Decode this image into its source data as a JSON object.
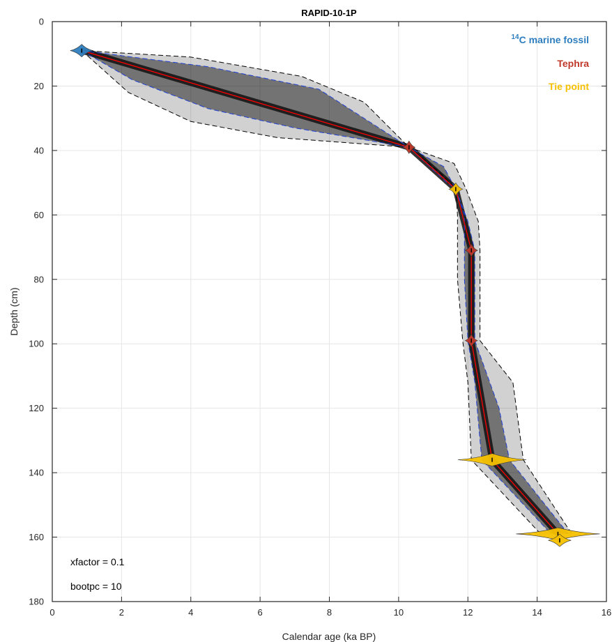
{
  "chart_data": {
    "type": "line",
    "title": "RAPID-10-1P",
    "xlabel": "Calendar age (ka BP)",
    "ylabel": "Depth (cm)",
    "xlim": [
      0,
      16
    ],
    "ylim": [
      0,
      180
    ],
    "y_reversed": true,
    "grid": true,
    "x_ticks": [
      0,
      2,
      4,
      6,
      8,
      10,
      12,
      14,
      16
    ],
    "y_ticks": [
      0,
      20,
      40,
      60,
      80,
      100,
      120,
      140,
      160,
      180
    ],
    "legend": {
      "placement": "top-right",
      "entries": [
        {
          "prefix": "14",
          "label": "C marine fossil",
          "color": "#2e7ebf"
        },
        {
          "label": "Tephra",
          "color": "#c0392b"
        },
        {
          "label": "Tie point",
          "color": "#f6c000"
        }
      ]
    },
    "annotations": [
      "xfactor = 0.1",
      "bootpc = 10"
    ],
    "series": [
      {
        "role": "median",
        "color": "#ff0000",
        "points": [
          [
            0.85,
            9
          ],
          [
            10.3,
            39
          ],
          [
            11.65,
            52
          ],
          [
            12.1,
            71
          ],
          [
            12.1,
            99
          ],
          [
            12.7,
            136
          ],
          [
            14.6,
            159
          ]
        ]
      },
      {
        "role": "inner-range",
        "color": "#1f3fd6",
        "upper": [
          [
            0.85,
            9
          ],
          [
            4.5,
            14
          ],
          [
            7.7,
            21
          ],
          [
            10.3,
            39
          ],
          [
            11.3,
            45
          ],
          [
            11.65,
            52
          ],
          [
            12.0,
            62
          ],
          [
            12.2,
            71
          ],
          [
            12.2,
            99
          ],
          [
            12.9,
            120
          ],
          [
            13.2,
            136
          ],
          [
            14.9,
            159
          ]
        ],
        "lower": [
          [
            0.85,
            9
          ],
          [
            2.3,
            18
          ],
          [
            4.5,
            27
          ],
          [
            7.0,
            33
          ],
          [
            10.3,
            39
          ],
          [
            11.4,
            50
          ],
          [
            11.65,
            52
          ],
          [
            11.9,
            60
          ],
          [
            11.9,
            80
          ],
          [
            12.0,
            99
          ],
          [
            12.2,
            112
          ],
          [
            12.4,
            136
          ],
          [
            14.4,
            159
          ]
        ]
      },
      {
        "role": "outer-range",
        "color": "#000000",
        "upper": [
          [
            0.85,
            9
          ],
          [
            4.0,
            11
          ],
          [
            7.2,
            17
          ],
          [
            9.0,
            25
          ],
          [
            10.3,
            39
          ],
          [
            11.6,
            44
          ],
          [
            11.95,
            52
          ],
          [
            12.3,
            62
          ],
          [
            12.35,
            71
          ],
          [
            12.35,
            99
          ],
          [
            13.3,
            112
          ],
          [
            13.6,
            136
          ],
          [
            15.0,
            159
          ]
        ],
        "lower": [
          [
            0.85,
            9
          ],
          [
            2.2,
            22
          ],
          [
            4.0,
            31
          ],
          [
            6.5,
            36
          ],
          [
            10.3,
            39
          ],
          [
            11.2,
            47
          ],
          [
            11.65,
            52
          ],
          [
            11.7,
            60
          ],
          [
            11.7,
            80
          ],
          [
            11.85,
            99
          ],
          [
            12.0,
            112
          ],
          [
            12.1,
            136
          ],
          [
            14.1,
            159
          ]
        ]
      }
    ],
    "age_markers": [
      {
        "type": "14C marine fossil",
        "age": 0.85,
        "depth": 9,
        "spread": 0.15
      },
      {
        "type": "Tephra",
        "age": 10.3,
        "depth": 39,
        "spread": 0.08
      },
      {
        "type": "Tie point",
        "age": 11.65,
        "depth": 52,
        "spread": 0.09
      },
      {
        "type": "Tephra",
        "age": 12.1,
        "depth": 71,
        "spread": 0.08
      },
      {
        "type": "Tephra",
        "age": 12.1,
        "depth": 99,
        "spread": 0.08
      },
      {
        "type": "Tie point",
        "age": 12.7,
        "depth": 136,
        "spread": 0.45
      },
      {
        "type": "Tie point",
        "age": 14.6,
        "depth": 159,
        "spread": 0.55
      },
      {
        "type": "Tie point",
        "age": 14.65,
        "depth": 161,
        "spread": 0.15
      }
    ]
  }
}
